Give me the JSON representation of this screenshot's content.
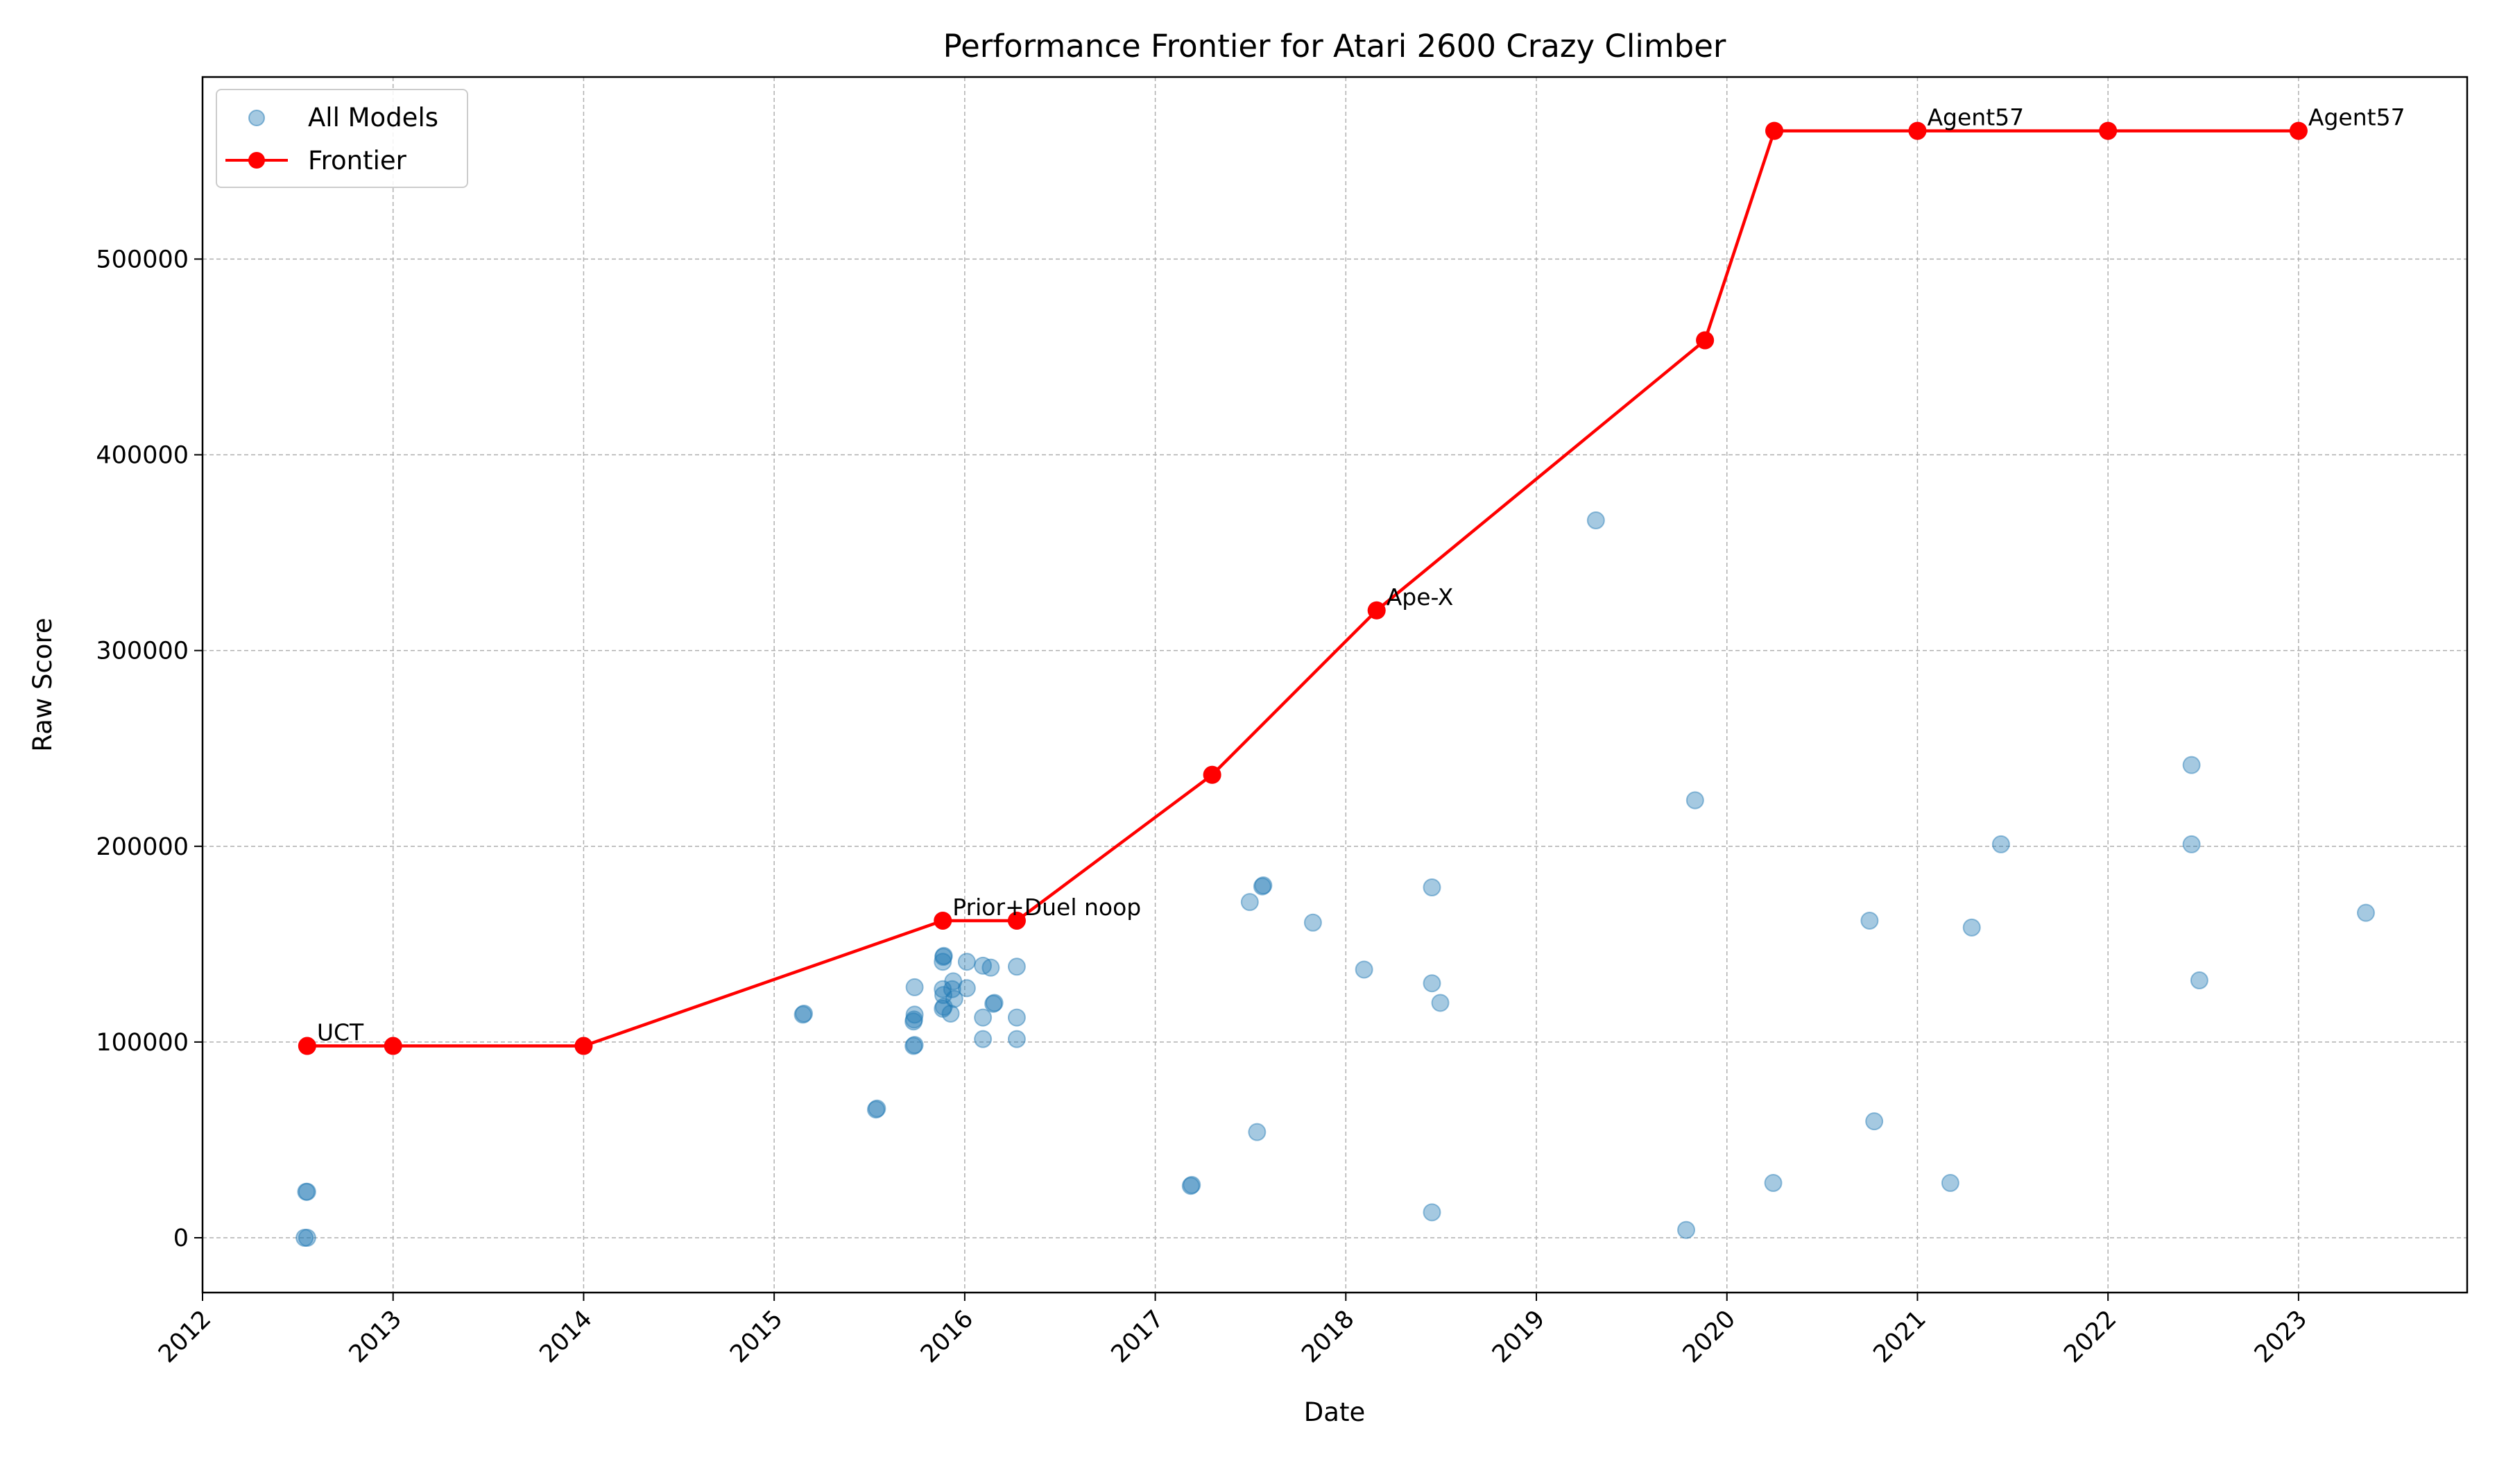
{
  "chart_data": {
    "type": "scatter",
    "title": "Performance Frontier for Atari 2600 Crazy Climber",
    "xlabel": "Date",
    "ylabel": "Raw Score",
    "x_axis_type": "date",
    "xlim": [
      "2012-01-01",
      "2023-11-20"
    ],
    "ylim": [
      -28000,
      593000
    ],
    "x_ticks": [
      "2012",
      "2013",
      "2014",
      "2015",
      "2016",
      "2017",
      "2018",
      "2019",
      "2020",
      "2021",
      "2022",
      "2023"
    ],
    "y_ticks": [
      0,
      100000,
      200000,
      300000,
      400000,
      500000
    ],
    "grid": true,
    "legend": {
      "placement": "top-left",
      "entries": [
        "All Models",
        "Frontier"
      ]
    },
    "colors": {
      "all_models": "#1f77b4",
      "frontier": "#ff0000"
    },
    "series": [
      {
        "name": "All Models",
        "kind": "scatter",
        "points": [
          [
            "2012-07-15",
            0
          ],
          [
            "2012-07-20",
            0
          ],
          [
            "2012-07-18",
            23500
          ],
          [
            "2012-07-20",
            23500
          ],
          [
            "2012-07-20",
            98000
          ],
          [
            "2013-01-01",
            98000
          ],
          [
            "2014-01-01",
            98000
          ],
          [
            "2015-02-25",
            114000
          ],
          [
            "2015-02-27",
            114500
          ],
          [
            "2015-07-15",
            65500
          ],
          [
            "2015-07-17",
            66000
          ],
          [
            "2015-09-25",
            98000
          ],
          [
            "2015-09-27",
            98500
          ],
          [
            "2015-09-25",
            110500
          ],
          [
            "2015-09-26",
            111500
          ],
          [
            "2015-09-27",
            114000
          ],
          [
            "2015-09-27",
            128000
          ],
          [
            "2015-11-20",
            141000
          ],
          [
            "2015-11-21",
            143500
          ],
          [
            "2015-11-22",
            144000
          ],
          [
            "2015-11-20",
            127000
          ],
          [
            "2015-11-21",
            124000
          ],
          [
            "2015-11-20",
            117000
          ],
          [
            "2015-11-22",
            118000
          ],
          [
            "2015-12-05",
            114500
          ],
          [
            "2015-12-08",
            127000
          ],
          [
            "2015-12-10",
            131000
          ],
          [
            "2015-12-12",
            122000
          ],
          [
            "2016-01-05",
            141000
          ],
          [
            "2016-01-05",
            127500
          ],
          [
            "2016-02-05",
            139000
          ],
          [
            "2016-02-05",
            112500
          ],
          [
            "2016-02-05",
            101500
          ],
          [
            "2016-02-20",
            138000
          ],
          [
            "2016-02-25",
            119500
          ],
          [
            "2016-02-27",
            120000
          ],
          [
            "2016-04-10",
            138500
          ],
          [
            "2016-04-10",
            112500
          ],
          [
            "2016-04-10",
            101500
          ],
          [
            "2016-04-10",
            162000
          ],
          [
            "2015-11-20",
            162000
          ],
          [
            "2017-03-10",
            26500
          ],
          [
            "2017-03-12",
            27000
          ],
          [
            "2017-04-20",
            236500
          ],
          [
            "2017-07-01",
            171500
          ],
          [
            "2017-07-15",
            54000
          ],
          [
            "2017-07-25",
            179500
          ],
          [
            "2017-07-27",
            180000
          ],
          [
            "2017-10-30",
            161000
          ],
          [
            "2018-02-05",
            137000
          ],
          [
            "2018-03-01",
            320500
          ],
          [
            "2018-06-15",
            179000
          ],
          [
            "2018-06-15",
            130000
          ],
          [
            "2018-06-15",
            13000
          ],
          [
            "2018-07-01",
            120000
          ],
          [
            "2019-04-25",
            366500
          ],
          [
            "2019-10-15",
            4000
          ],
          [
            "2019-11-01",
            223500
          ],
          [
            "2019-11-20",
            458500
          ],
          [
            "2020-03-30",
            28000
          ],
          [
            "2020-04-01",
            565500
          ],
          [
            "2020-10-01",
            162000
          ],
          [
            "2020-10-10",
            59500
          ],
          [
            "2021-01-01",
            565500
          ],
          [
            "2021-03-05",
            28000
          ],
          [
            "2021-04-15",
            158500
          ],
          [
            "2021-06-10",
            201000
          ],
          [
            "2022-01-01",
            565500
          ],
          [
            "2022-06-10",
            241500
          ],
          [
            "2022-06-10",
            201000
          ],
          [
            "2022-06-25",
            131500
          ],
          [
            "2023-01-01",
            565500
          ],
          [
            "2023-05-10",
            166000
          ]
        ]
      },
      {
        "name": "Frontier",
        "kind": "line",
        "points": [
          [
            "2012-07-20",
            98000
          ],
          [
            "2013-01-01",
            98000
          ],
          [
            "2014-01-01",
            98000
          ],
          [
            "2015-11-20",
            162000
          ],
          [
            "2016-04-10",
            162000
          ],
          [
            "2017-04-20",
            236500
          ],
          [
            "2018-03-01",
            320500
          ],
          [
            "2019-11-20",
            458500
          ],
          [
            "2020-04-01",
            565500
          ],
          [
            "2021-01-01",
            565500
          ],
          [
            "2022-01-01",
            565500
          ],
          [
            "2023-01-01",
            565500
          ]
        ]
      }
    ],
    "annotations": [
      {
        "text": "UCT",
        "x": "2012-07-20",
        "y": 98000
      },
      {
        "text": "Prior+Duel noop",
        "x": "2015-11-20",
        "y": 162000
      },
      {
        "text": "Ape-X",
        "x": "2018-03-01",
        "y": 320500
      },
      {
        "text": "Agent57",
        "x": "2021-01-01",
        "y": 565500
      },
      {
        "text": "Agent57",
        "x": "2023-01-01",
        "y": 565500
      }
    ]
  }
}
